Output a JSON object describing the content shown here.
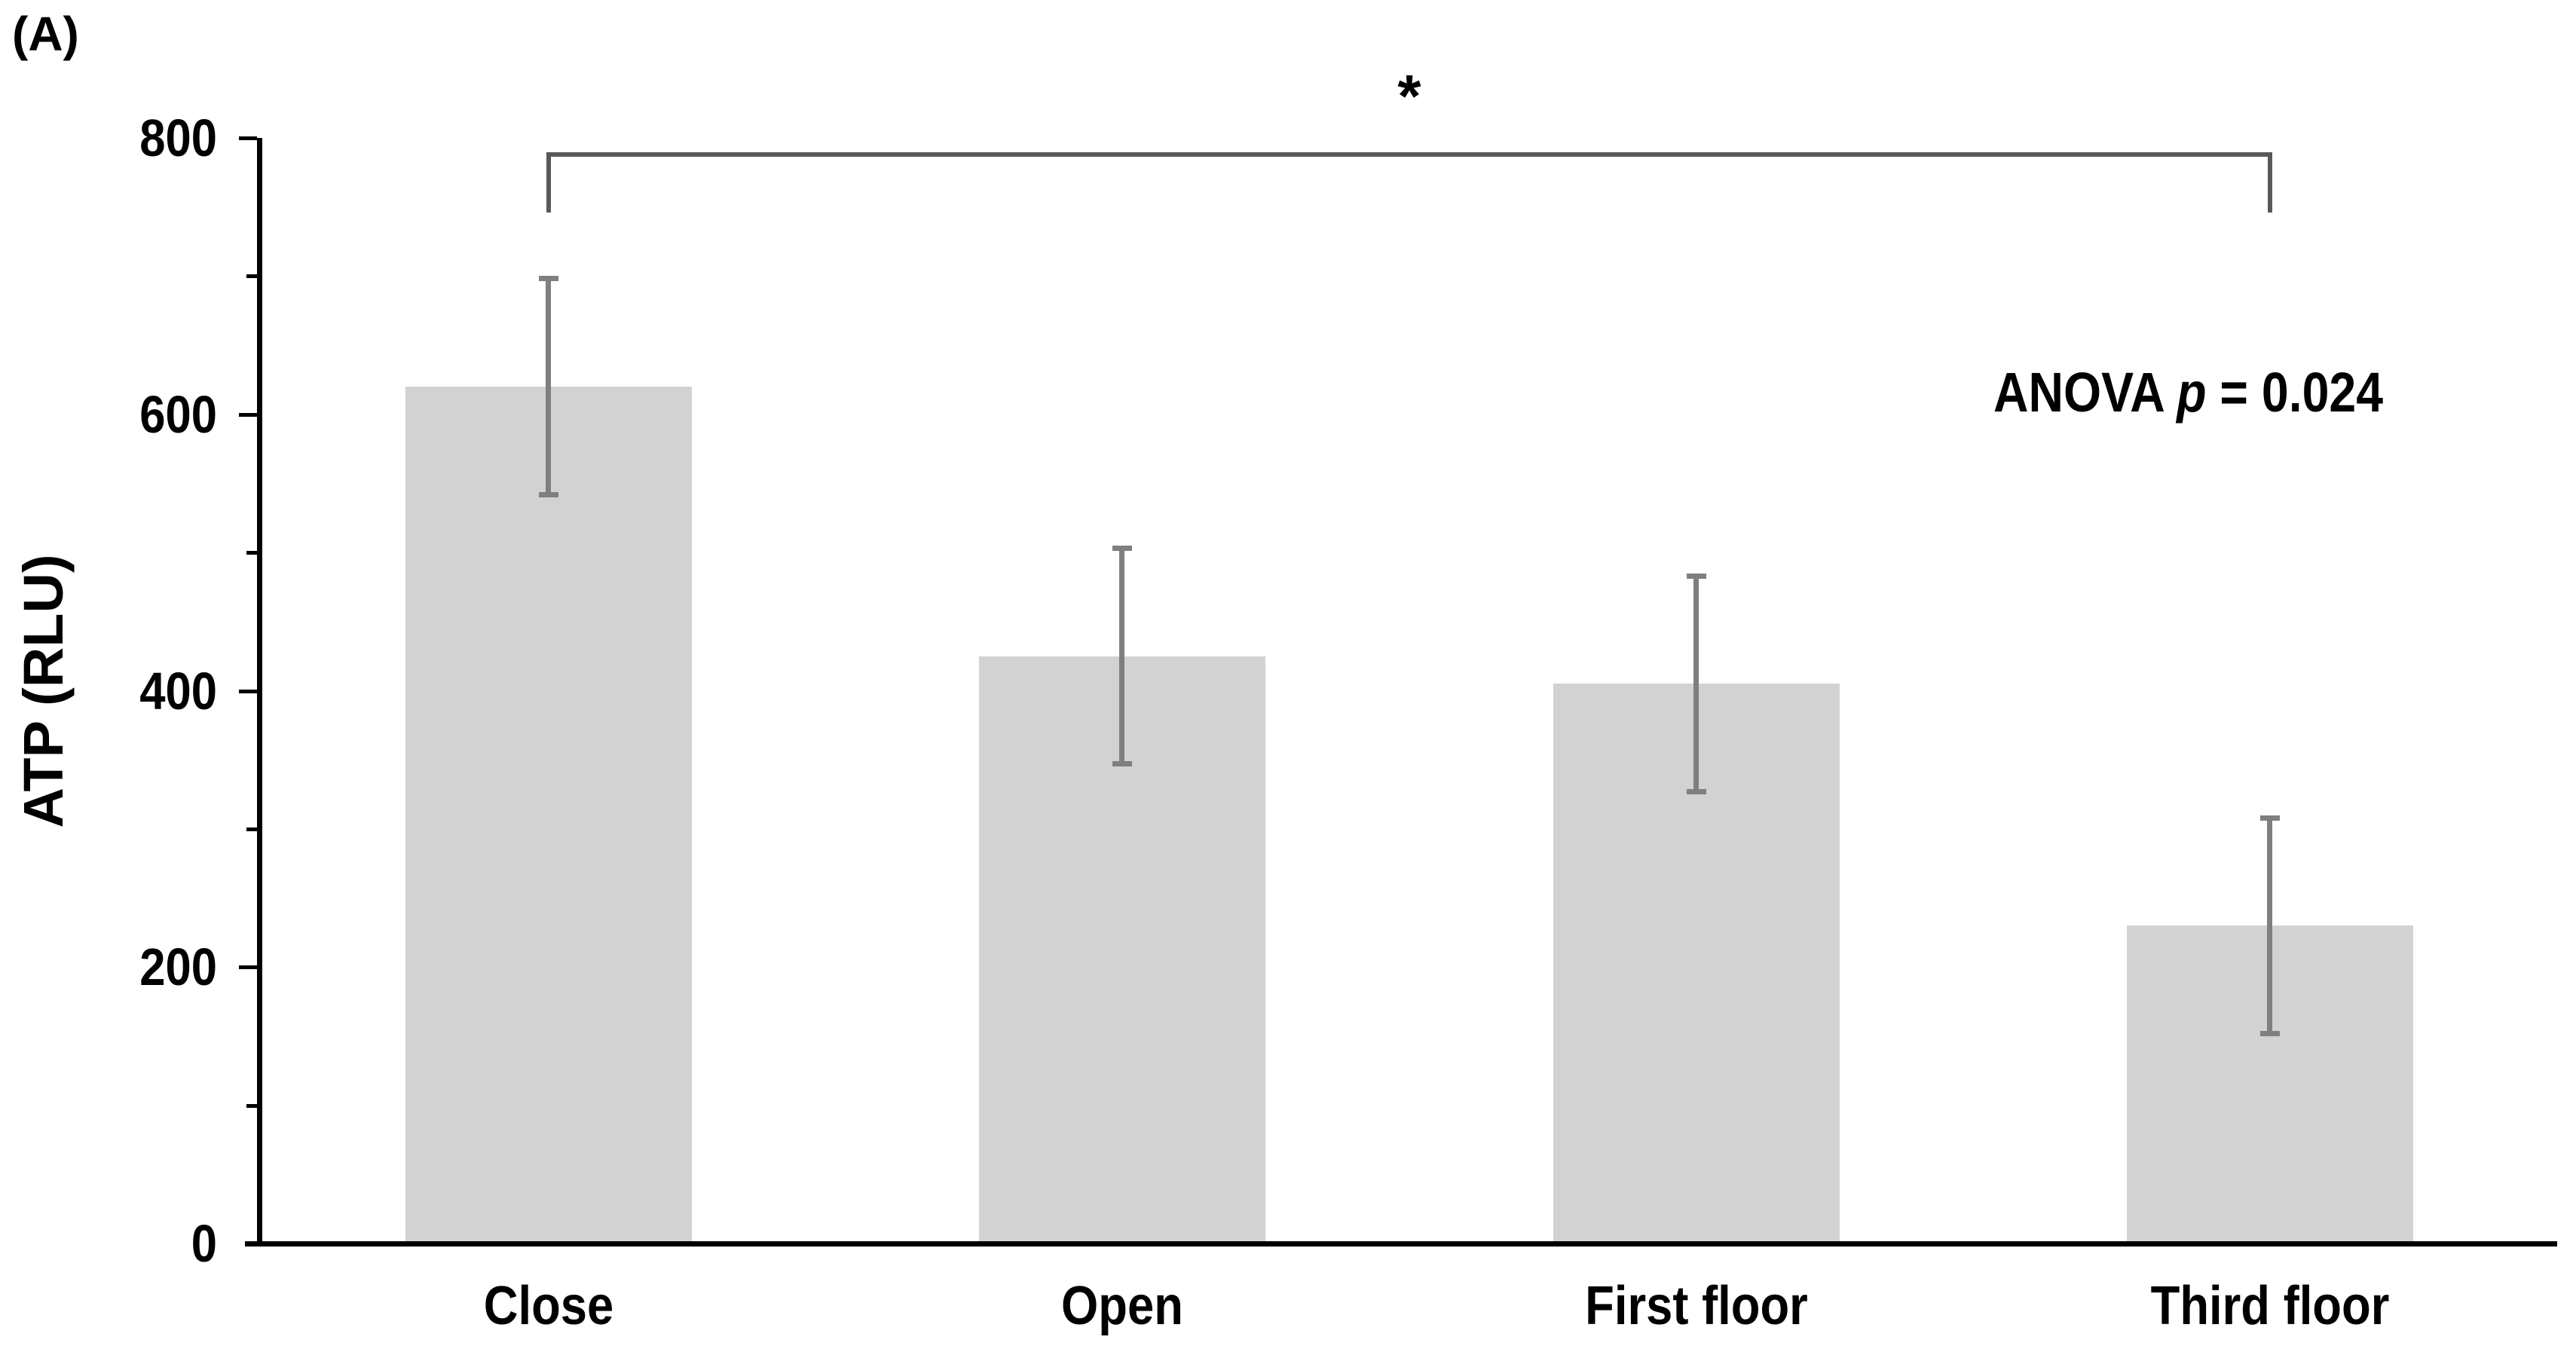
{
  "chart_data": {
    "type": "bar",
    "panel_label": "(A)",
    "title": "",
    "ylabel": "ATP (RLU)",
    "xlabel": "",
    "categories": [
      "Close",
      "Open",
      "First floor",
      "Third floor"
    ],
    "values": [
      620,
      425,
      405,
      230
    ],
    "error_bars_plus": [
      80,
      80,
      80,
      80
    ],
    "error_bars_minus": [
      80,
      80,
      80,
      80
    ],
    "ylim": [
      0,
      800
    ],
    "yticks_labeled": [
      0,
      200,
      400,
      600,
      800
    ],
    "yticks_minor": [
      100,
      300,
      500,
      700
    ],
    "grid": false,
    "legend": false,
    "annotations": {
      "significance_bracket": {
        "label": "*",
        "from_category": "Close",
        "to_category": "Third floor"
      },
      "stats": {
        "prefix": "ANOVA ",
        "p_symbol": "p",
        "rest": " = 0.024"
      }
    },
    "colors": {
      "bar_fill": "#D2D2D2",
      "error_bar": "#7F7F7F",
      "bracket": "#595959",
      "axis": "#000000",
      "text": "#000000"
    }
  }
}
